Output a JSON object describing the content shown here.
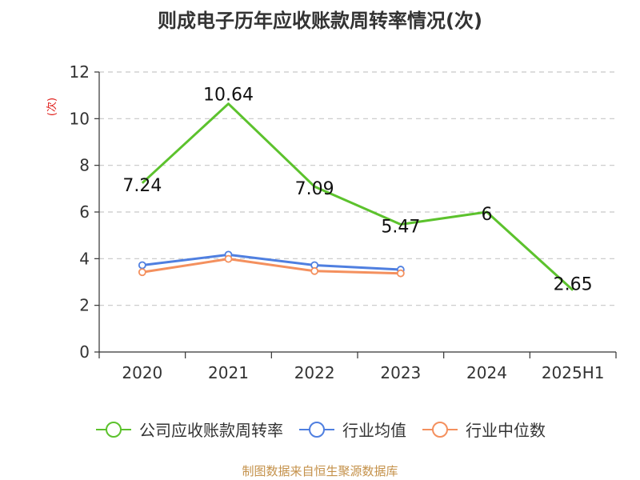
{
  "chart_data": {
    "type": "line",
    "title": "则成电子历年应收账款周转率情况(次)",
    "ylabel": "(次)",
    "xlabel": "",
    "categories": [
      "2020",
      "2021",
      "2022",
      "2023",
      "2024",
      "2025H1"
    ],
    "ylim": [
      0,
      12
    ],
    "yticks": [
      0,
      2,
      4,
      6,
      8,
      10,
      12
    ],
    "grid": true,
    "legend_position": "bottom",
    "series": [
      {
        "name": "公司应收账款周转率",
        "color": "#5cc22d",
        "values": [
          7.24,
          10.64,
          7.09,
          5.47,
          6,
          2.65
        ],
        "labels": [
          "7.24",
          "10.64",
          "7.09",
          "5.47",
          "6",
          "2.65"
        ]
      },
      {
        "name": "行业均值",
        "color": "#4f7fe0",
        "values": [
          3.72,
          4.17,
          3.72,
          3.53,
          null,
          null
        ]
      },
      {
        "name": "行业中位数",
        "color": "#f4905e",
        "values": [
          3.42,
          3.99,
          3.47,
          3.37,
          null,
          null
        ]
      }
    ]
  },
  "source": "制图数据来自恒生聚源数据库"
}
